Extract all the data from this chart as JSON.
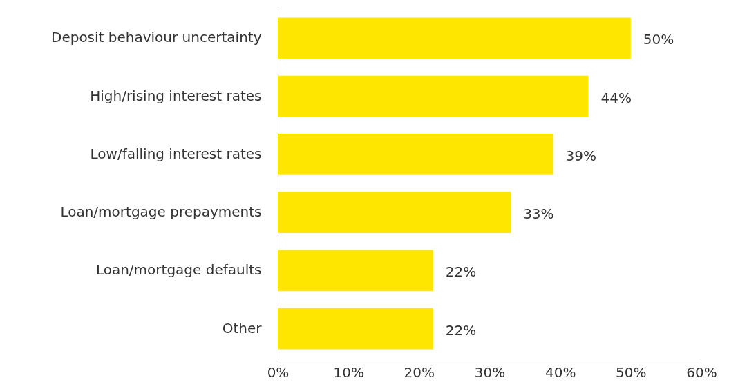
{
  "chart_data": {
    "type": "bar",
    "orientation": "horizontal",
    "categories": [
      "Deposit behaviour uncertainty",
      "High/rising interest rates",
      "Low/falling interest rates",
      "Loan/mortgage prepayments",
      "Loan/mortgage defaults",
      "Other"
    ],
    "values": [
      50,
      44,
      39,
      33,
      22,
      22
    ],
    "value_labels": [
      "50%",
      "44%",
      "39%",
      "33%",
      "22%",
      "22%"
    ],
    "color": "#ffe600",
    "xlim": [
      0,
      60
    ],
    "xticks": [
      {
        "value": 0,
        "label": "0%"
      },
      {
        "value": 10,
        "label": "10%"
      },
      {
        "value": 20,
        "label": "20%"
      },
      {
        "value": 30,
        "label": "30%"
      },
      {
        "value": 40,
        "label": "40%"
      },
      {
        "value": 50,
        "label": "50%"
      },
      {
        "value": 60,
        "label": "60%"
      }
    ],
    "grid": false
  }
}
